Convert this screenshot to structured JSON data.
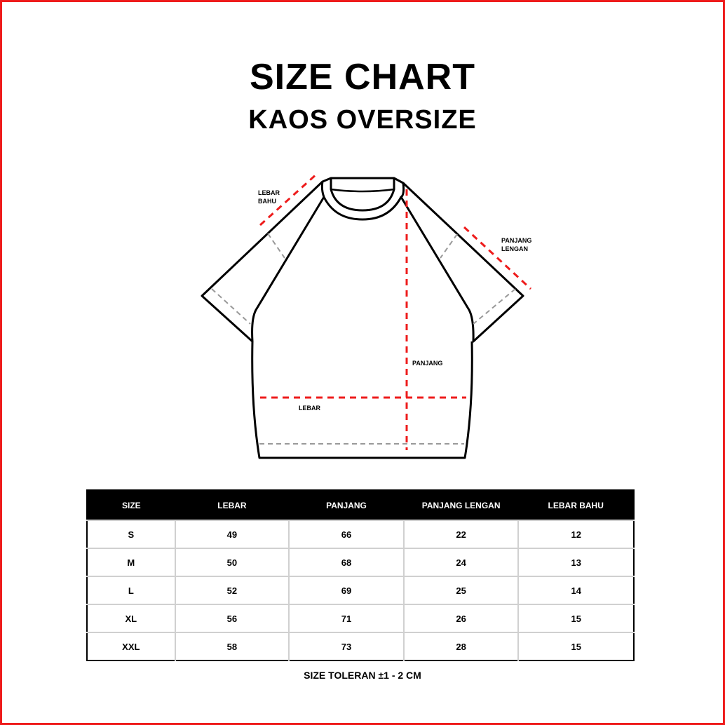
{
  "title": "SIZE CHART",
  "subtitle": "KAOS OVERSIZE",
  "diagram": {
    "labels": {
      "lebar_bahu": [
        "LEBAR",
        "BAHU"
      ],
      "panjang_lengan": [
        "PANJANG",
        "LENGAN"
      ],
      "panjang": "PANJANG",
      "lebar": "LEBAR"
    },
    "colors": {
      "measure": "#ee1c1c",
      "guide": "#999999",
      "outline": "#000000"
    }
  },
  "table": {
    "headers": [
      "SIZE",
      "LEBAR",
      "PANJANG",
      "PANJANG LENGAN",
      "LEBAR BAHU"
    ],
    "rows": [
      [
        "S",
        "49",
        "66",
        "22",
        "12"
      ],
      [
        "M",
        "50",
        "68",
        "24",
        "13"
      ],
      [
        "L",
        "52",
        "69",
        "25",
        "14"
      ],
      [
        "XL",
        "56",
        "71",
        "26",
        "15"
      ],
      [
        "XXL",
        "58",
        "73",
        "28",
        "15"
      ]
    ]
  },
  "note": "SIZE TOLERAN  ±1 - 2 CM",
  "colors": {
    "border": "#ee1c1c",
    "header_bg": "#000000"
  }
}
